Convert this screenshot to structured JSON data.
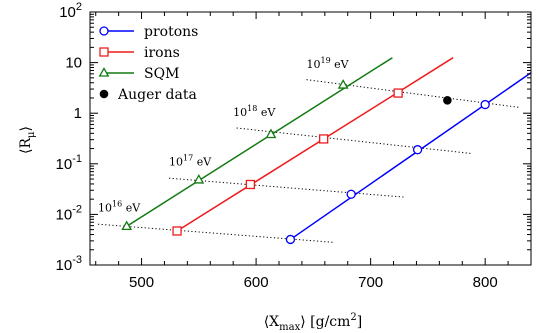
{
  "chart_data": {
    "type": "scatter",
    "xlabel_parts": {
      "main": "⟨X",
      "sub": "max",
      "rest": "⟩ [g/cm",
      "sup": "2",
      "end": "]"
    },
    "ylabel_parts": {
      "main": "⟨R",
      "sub": "μ",
      "end": "⟩"
    },
    "xlim": [
      455,
      840
    ],
    "ylim_log10": [
      -3,
      2
    ],
    "y_scale": "log",
    "grid": false,
    "legend_position": "top-left",
    "x_ticks": [
      {
        "value": 500,
        "label": "500"
      },
      {
        "value": 600,
        "label": "600"
      },
      {
        "value": 700,
        "label": "700"
      },
      {
        "value": 800,
        "label": "800"
      }
    ],
    "y_ticks": [
      {
        "value": 0.001,
        "base": "10",
        "exp": "-3"
      },
      {
        "value": 0.01,
        "base": "10",
        "exp": "-2"
      },
      {
        "value": 0.1,
        "base": "10",
        "exp": "-1"
      },
      {
        "value": 1,
        "base": "1",
        "exp": ""
      },
      {
        "value": 10,
        "base": "10",
        "exp": ""
      },
      {
        "value": 100,
        "base": "10",
        "exp": "2"
      }
    ],
    "series": [
      {
        "name": "protons",
        "color": "#0000ff",
        "marker": "circle",
        "points": [
          [
            630,
            0.0032
          ],
          [
            683,
            0.025
          ],
          [
            741,
            0.19
          ],
          [
            800,
            1.48
          ]
        ],
        "line": [
          [
            630,
            0.0032
          ],
          [
            840,
            6.3
          ]
        ]
      },
      {
        "name": "irons",
        "color": "#ee1c1c",
        "marker": "square",
        "points": [
          [
            531,
            0.0047
          ],
          [
            595,
            0.039
          ],
          [
            659,
            0.31
          ],
          [
            724,
            2.5
          ]
        ],
        "line": [
          [
            531,
            0.0047
          ],
          [
            772,
            12.5
          ]
        ]
      },
      {
        "name": "SQM",
        "color": "#127a12",
        "marker": "triangle",
        "points": [
          [
            487,
            0.0058
          ],
          [
            550,
            0.048
          ],
          [
            613,
            0.38
          ],
          [
            676,
            3.6
          ]
        ],
        "line": [
          [
            487,
            0.0058
          ],
          [
            719,
            12.5
          ]
        ]
      },
      {
        "name": "Auger data",
        "color": "#000000",
        "marker": "filled-circle",
        "points": [
          [
            767,
            1.8
          ]
        ],
        "error": [
          [
            1.5,
            2.15
          ]
        ]
      }
    ],
    "energy_lines": [
      {
        "label_base": "10",
        "label_exp": "16",
        "label_unit": " eV",
        "label_at": [
          462,
          0.0115
        ],
        "from": [
          462,
          0.0064
        ],
        "to": [
          668,
          0.0028
        ]
      },
      {
        "label_base": "10",
        "label_exp": "17",
        "label_unit": " eV",
        "label_at": [
          524,
          0.092
        ],
        "from": [
          524,
          0.052
        ],
        "to": [
          729,
          0.022
        ]
      },
      {
        "label_base": "10",
        "label_exp": "18",
        "label_unit": " eV",
        "label_at": [
          580,
          0.88
        ],
        "from": [
          583,
          0.51
        ],
        "to": [
          788,
          0.16
        ]
      },
      {
        "label_base": "10",
        "label_exp": "19",
        "label_unit": " eV",
        "label_at": [
          644,
          7.9
        ],
        "from": [
          644,
          4.6
        ],
        "to": [
          830,
          1.3
        ]
      }
    ]
  }
}
